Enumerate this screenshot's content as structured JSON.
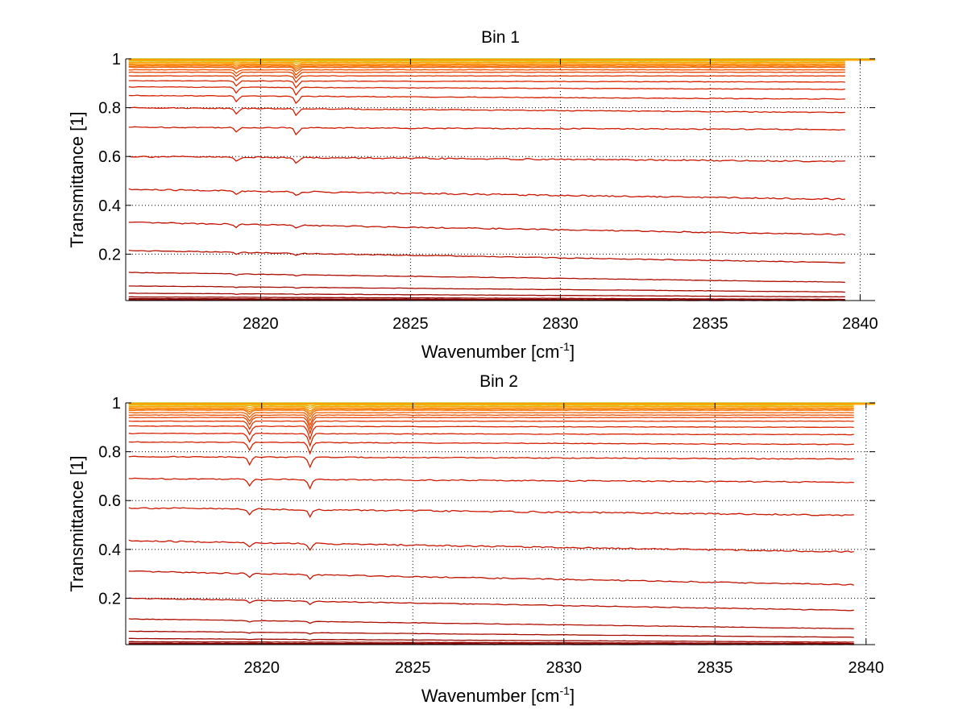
{
  "chart_data": [
    {
      "type": "line",
      "title": "Bin 1",
      "xlabel": "Wavenumber [cm",
      "xlabel_sup": "-1",
      "xlabel_end": "]",
      "ylabel": "Transmittance [1]",
      "xlim": [
        2815.5,
        2840.5
      ],
      "ylim": [
        0.01,
        1.0
      ],
      "x_ticks": [
        2820,
        2825,
        2830,
        2835,
        2840
      ],
      "y_ticks": [
        0.2,
        0.4,
        0.6,
        0.8,
        1
      ],
      "grid": true,
      "x_start": 2815.6,
      "x_end": 2839.5,
      "dip_positions": [
        2819.2,
        2821.2
      ],
      "curve_levels": [
        0.995,
        0.99,
        0.985,
        0.98,
        0.975,
        0.97,
        0.965,
        0.955,
        0.945,
        0.93,
        0.91,
        0.885,
        0.85,
        0.8,
        0.72,
        0.6,
        0.465,
        0.33,
        0.215,
        0.125,
        0.07,
        0.04,
        0.025,
        0.018,
        0.014,
        0.012
      ],
      "curve_end_levels": [
        0.995,
        0.99,
        0.985,
        0.98,
        0.975,
        0.97,
        0.965,
        0.955,
        0.945,
        0.93,
        0.905,
        0.875,
        0.835,
        0.78,
        0.71,
        0.58,
        0.425,
        0.28,
        0.165,
        0.085,
        0.045,
        0.025,
        0.015,
        0.012,
        0.011,
        0.01
      ],
      "dip_depth_1": [
        0.0,
        0.0,
        0.002,
        0.004,
        0.006,
        0.008,
        0.01,
        0.014,
        0.018,
        0.02,
        0.022,
        0.024,
        0.024,
        0.022,
        0.02,
        0.018,
        0.016,
        0.012,
        0.008,
        0.005,
        0.003,
        0.002,
        0.0,
        0.0,
        0.0,
        0.0
      ],
      "dip_depth_2": [
        0.0,
        0.002,
        0.004,
        0.008,
        0.01,
        0.014,
        0.018,
        0.022,
        0.026,
        0.028,
        0.03,
        0.032,
        0.032,
        0.03,
        0.028,
        0.022,
        0.018,
        0.014,
        0.01,
        0.006,
        0.004,
        0.002,
        0.0,
        0.0,
        0.0,
        0.0
      ]
    },
    {
      "type": "line",
      "title": "Bin 2",
      "xlabel": "Wavenumber [cm",
      "xlabel_sup": "-1",
      "xlabel_end": "]",
      "ylabel": "Transmittance [1]",
      "xlim": [
        2815.5,
        2840.3
      ],
      "ylim": [
        0.01,
        1.0
      ],
      "x_ticks": [
        2820,
        2825,
        2830,
        2835,
        2840
      ],
      "y_ticks": [
        0.2,
        0.4,
        0.6,
        0.8,
        1
      ],
      "grid": true,
      "x_start": 2815.6,
      "x_end": 2839.6,
      "dip_positions": [
        2819.6,
        2821.6
      ],
      "curve_levels": [
        0.995,
        0.99,
        0.985,
        0.98,
        0.975,
        0.97,
        0.96,
        0.95,
        0.94,
        0.925,
        0.905,
        0.875,
        0.84,
        0.78,
        0.69,
        0.57,
        0.435,
        0.31,
        0.2,
        0.115,
        0.065,
        0.035,
        0.022,
        0.016,
        0.013,
        0.011
      ],
      "curve_end_levels": [
        0.995,
        0.99,
        0.985,
        0.98,
        0.975,
        0.97,
        0.96,
        0.95,
        0.94,
        0.925,
        0.9,
        0.87,
        0.83,
        0.77,
        0.675,
        0.54,
        0.39,
        0.255,
        0.15,
        0.075,
        0.04,
        0.02,
        0.015,
        0.012,
        0.011,
        0.01
      ],
      "dip_depth_1": [
        0.0,
        0.002,
        0.004,
        0.008,
        0.012,
        0.016,
        0.02,
        0.024,
        0.028,
        0.032,
        0.034,
        0.034,
        0.032,
        0.03,
        0.026,
        0.022,
        0.018,
        0.014,
        0.01,
        0.007,
        0.004,
        0.002,
        0.0,
        0.0,
        0.0,
        0.0
      ],
      "dip_depth_2": [
        0.0,
        0.004,
        0.008,
        0.014,
        0.02,
        0.026,
        0.032,
        0.04,
        0.046,
        0.05,
        0.052,
        0.05,
        0.046,
        0.04,
        0.035,
        0.03,
        0.024,
        0.018,
        0.012,
        0.008,
        0.005,
        0.003,
        0.0,
        0.0,
        0.0,
        0.0
      ]
    }
  ]
}
